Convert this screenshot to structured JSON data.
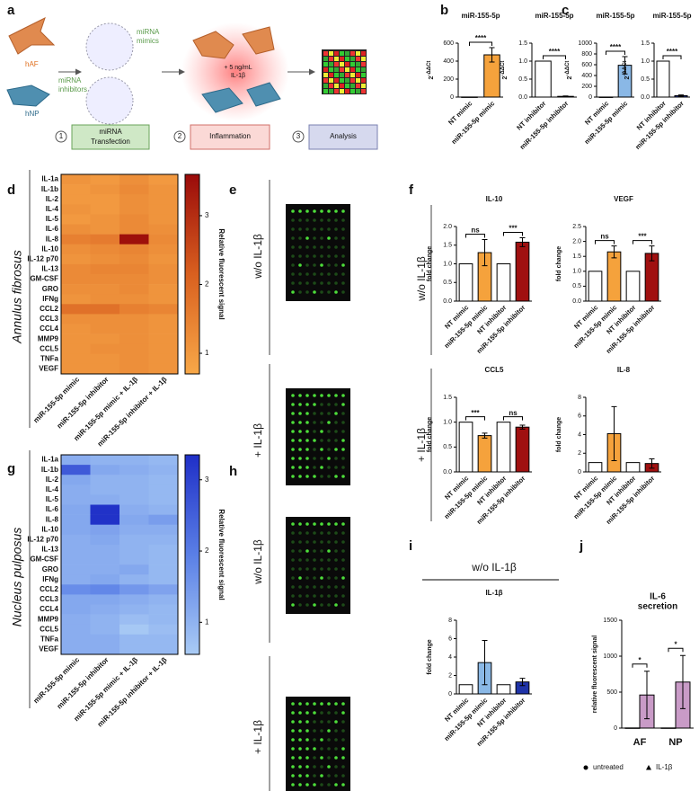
{
  "panels": [
    "a",
    "b",
    "c",
    "d",
    "e",
    "f",
    "g",
    "h",
    "i",
    "j"
  ],
  "diagram": {
    "cell_labels": [
      "hAF",
      "hNP"
    ],
    "vesicle_labels": [
      [
        "miRNA",
        "mimics"
      ],
      [
        "miRNA",
        "inhibitors"
      ]
    ],
    "stimulus": [
      "+ 5 ng/mL",
      "IL-1β"
    ],
    "steps": [
      {
        "number": "1",
        "label": [
          "miRNA",
          "Transfection"
        ]
      },
      {
        "number": "2",
        "label": [
          "Inflammation"
        ]
      },
      {
        "number": "3",
        "label": [
          "Analysis"
        ]
      }
    ]
  },
  "array_e": [
    "w/o IL-1β",
    "+ IL-1β"
  ],
  "array_h": [
    "w/o IL-1β",
    "+ IL-1β"
  ],
  "f_conditions": [
    "w/o IL-1β",
    "+ IL-1β"
  ],
  "chart_data": [
    {
      "type": "bar",
      "title": "miR-155-5p",
      "ylabel": "2",
      "ylabel_sup": "-ΔΔCt",
      "categories": [
        "NT mimic",
        "miR-155-5p mimic"
      ],
      "values": [
        1,
        470
      ],
      "errors": [
        0,
        80
      ],
      "colors": [
        "#ffffff",
        "#f5a23c"
      ],
      "ylim": [
        0,
        600
      ],
      "yticks": [
        0,
        200,
        400,
        600
      ],
      "significance": [
        "****"
      ]
    },
    {
      "type": "bar",
      "title": "miR-155-5p",
      "ylabel": "2",
      "ylabel_sup": "-ΔΔCt",
      "categories": [
        "NT inhibitor",
        "miR-155-5p inhibitor"
      ],
      "values": [
        1,
        0.02
      ],
      "errors": [
        0,
        0.01
      ],
      "colors": [
        "#ffffff",
        "#a01010"
      ],
      "ylim": [
        0,
        1.5
      ],
      "yticks": [
        {
          "value": 0,
          "label": "0.0"
        },
        0.5,
        {
          "value": 1,
          "label": "1.0"
        },
        1.5
      ],
      "significance": [
        "****"
      ]
    },
    {
      "type": "bar",
      "title": "miR-155-5p",
      "ylabel": "2",
      "ylabel_sup": "-ΔΔCt",
      "categories": [
        "NT mimic",
        "miR-155-5p mimic"
      ],
      "values": [
        1,
        590
      ],
      "errors": [
        0,
        160
      ],
      "colors": [
        "#ffffff",
        "#8ab8e6"
      ],
      "ylim": [
        0,
        1000
      ],
      "yticks": [
        0,
        200,
        400,
        600,
        800,
        1000
      ],
      "significance": [
        "****"
      ]
    },
    {
      "type": "bar",
      "title": "miR-155-5p",
      "ylabel": "2",
      "ylabel_sup": "-ΔΔCt",
      "categories": [
        "NT inhibitor",
        "miR-155-5p inhibitor"
      ],
      "values": [
        1,
        0.04
      ],
      "errors": [
        0,
        0.02
      ],
      "colors": [
        "#ffffff",
        "#1f33a8"
      ],
      "ylim": [
        0,
        1.5
      ],
      "yticks": [
        {
          "value": 0,
          "label": "0.0"
        },
        0.5,
        {
          "value": 1,
          "label": "1.0"
        },
        1.5
      ],
      "significance": [
        "****"
      ]
    },
    {
      "type": "heatmap",
      "side_label": "Annulus fibrosus",
      "colorbar_label": "Relative fluorescent signal",
      "rows": [
        "IL-1a",
        "IL-1b",
        "IL-2",
        "IL-4",
        "IL-5",
        "IL-6",
        "IL-8",
        "IL-10",
        "IL-12 p70",
        "IL-13",
        "GM-CSF",
        "GRO",
        "IFNg",
        "CCL2",
        "CCL3",
        "CCL4",
        "MMP9",
        "CCL5",
        "TNFa",
        "VEGF"
      ],
      "columns": [
        "miR-155-5p mimic",
        "miR-155-5p inhibitor",
        "miR-155-5p mimic + IL-1β",
        "miR-155-5p inhibitor + IL-1β"
      ],
      "values": [
        [
          1.1,
          1.0,
          1.2,
          1.0
        ],
        [
          1.0,
          1.1,
          1.3,
          1.1
        ],
        [
          1.0,
          1.0,
          1.2,
          1.1
        ],
        [
          1.1,
          1.0,
          1.2,
          1.1
        ],
        [
          1.0,
          1.1,
          1.3,
          1.1
        ],
        [
          1.2,
          1.1,
          1.3,
          1.2
        ],
        [
          1.5,
          1.6,
          3.5,
          1.3
        ],
        [
          1.2,
          1.3,
          1.4,
          1.2
        ],
        [
          1.1,
          1.2,
          1.3,
          1.1
        ],
        [
          1.3,
          1.4,
          1.4,
          1.2
        ],
        [
          1.3,
          1.3,
          1.3,
          1.2
        ],
        [
          1.2,
          1.2,
          1.3,
          1.1
        ],
        [
          1.1,
          1.2,
          1.2,
          1.1
        ],
        [
          1.8,
          1.8,
          1.5,
          1.4
        ],
        [
          1.2,
          1.2,
          1.2,
          1.1
        ],
        [
          1.1,
          1.2,
          1.2,
          1.1
        ],
        [
          1.1,
          1.1,
          1.2,
          1.1
        ],
        [
          1.1,
          1.2,
          1.2,
          1.1
        ],
        [
          1.1,
          1.1,
          1.2,
          1.1
        ],
        [
          1.1,
          1.1,
          1.2,
          1.1
        ]
      ],
      "colors": [
        "#f8a848",
        "#d9601f",
        "#9a0a0a"
      ],
      "zlim": [
        0.7,
        3.6
      ],
      "zticks": [
        1,
        2,
        3
      ]
    },
    {
      "type": "heatmap",
      "side_label": "Nucleus pulposus",
      "colorbar_label": "Relative fluorescent signal",
      "rows": [
        "IL-1a",
        "IL-1b",
        "IL-2",
        "IL-4",
        "IL-5",
        "IL-6",
        "IL-8",
        "IL-10",
        "IL-12 p70",
        "IL-13",
        "GM-CSF",
        "GRO",
        "IFNg",
        "CCL2",
        "CCL3",
        "CCL4",
        "MMP9",
        "CCL5",
        "TNFa",
        "VEGF"
      ],
      "columns": [
        "miR-155-5p mimic",
        "miR-155-5p inhibitor",
        "miR-155-5p mimic + IL-1β",
        "miR-155-5p inhibitor + IL-1β"
      ],
      "values": [
        [
          1.1,
          1.0,
          1.0,
          0.9
        ],
        [
          2.6,
          1.2,
          1.1,
          1.0
        ],
        [
          1.2,
          1.0,
          1.0,
          0.9
        ],
        [
          1.1,
          1.0,
          1.0,
          0.9
        ],
        [
          1.1,
          1.1,
          1.0,
          0.9
        ],
        [
          1.2,
          3.3,
          1.1,
          1.0
        ],
        [
          1.2,
          3.3,
          1.2,
          1.4
        ],
        [
          1.2,
          1.3,
          1.1,
          1.1
        ],
        [
          1.1,
          1.2,
          1.0,
          1.0
        ],
        [
          1.1,
          1.1,
          1.0,
          0.9
        ],
        [
          1.1,
          1.1,
          1.0,
          0.9
        ],
        [
          1.1,
          1.1,
          1.2,
          0.9
        ],
        [
          1.1,
          1.2,
          1.0,
          0.9
        ],
        [
          1.7,
          1.8,
          1.5,
          1.3
        ],
        [
          1.2,
          1.2,
          1.1,
          1.0
        ],
        [
          1.2,
          1.1,
          1.0,
          0.9
        ],
        [
          1.1,
          1.0,
          0.8,
          0.9
        ],
        [
          1.1,
          1.0,
          0.6,
          0.8
        ],
        [
          1.1,
          1.1,
          0.9,
          0.9
        ],
        [
          1.1,
          1.1,
          0.9,
          0.9
        ]
      ],
      "colors": [
        "#a9cbf5",
        "#5a7fe6",
        "#1f2fc7"
      ],
      "zlim": [
        0.55,
        3.35
      ],
      "zticks": [
        1,
        2,
        3
      ]
    },
    {
      "type": "bar",
      "title": "IL-10",
      "ylabel": "fold change",
      "categories": [
        "NT mimic",
        "miR-155-5p mimic",
        "NT inhibitor",
        "miR-155-5p inhibitor"
      ],
      "values": [
        1,
        1.3,
        1,
        1.58
      ],
      "errors": [
        0,
        0.35,
        0,
        0.12
      ],
      "colors": [
        "#ffffff",
        "#f5a23c",
        "#ffffff",
        "#a01010"
      ],
      "ylim": [
        0,
        2
      ],
      "yticks": [
        {
          "value": 0,
          "label": "0.0"
        },
        0.5,
        {
          "value": 1,
          "label": "1.0"
        },
        1.5,
        {
          "value": 2,
          "label": "2.0"
        }
      ],
      "significance": [
        "ns",
        "***"
      ]
    },
    {
      "type": "bar",
      "title": "VEGF",
      "ylabel": "fold change",
      "categories": [
        "NT mimic",
        "miR-155-5p mimic",
        "NT inhibitor",
        "miR-155-5p inhibitor"
      ],
      "values": [
        1,
        1.65,
        1,
        1.6
      ],
      "errors": [
        0,
        0.2,
        0,
        0.25
      ],
      "colors": [
        "#ffffff",
        "#f5a23c",
        "#ffffff",
        "#a01010"
      ],
      "ylim": [
        0,
        2.5
      ],
      "yticks": [
        {
          "value": 0,
          "label": "0.0"
        },
        0.5,
        {
          "value": 1,
          "label": "1.0"
        },
        1.5,
        {
          "value": 2,
          "label": "2.0"
        },
        2.5
      ],
      "significance": [
        "ns",
        "***"
      ]
    },
    {
      "type": "bar",
      "title": "CCL5",
      "ylabel": "fold change",
      "categories": [
        "NT mimic",
        "miR-155-5p mimic",
        "NT inhibitor",
        "miR-155-5p inhibitor"
      ],
      "values": [
        1,
        0.73,
        1,
        0.9
      ],
      "errors": [
        0,
        0.05,
        0,
        0.04
      ],
      "colors": [
        "#ffffff",
        "#f5a23c",
        "#ffffff",
        "#a01010"
      ],
      "ylim": [
        0,
        1.5
      ],
      "yticks": [
        {
          "value": 0,
          "label": "0.0"
        },
        0.5,
        {
          "value": 1,
          "label": "1.0"
        },
        1.5
      ],
      "significance": [
        "***",
        "ns"
      ]
    },
    {
      "type": "bar",
      "title": "IL-8",
      "ylabel": "fold change",
      "categories": [
        "NT mimic",
        "miR-155-5p mimic",
        "NT inhibitor",
        "miR-155-5p inhibitor"
      ],
      "values": [
        1,
        4.1,
        1,
        0.9
      ],
      "errors": [
        0,
        2.9,
        0,
        0.5
      ],
      "colors": [
        "#ffffff",
        "#f5a23c",
        "#ffffff",
        "#a01010"
      ],
      "ylim": [
        0,
        8
      ],
      "yticks": [
        0,
        2,
        4,
        6,
        8
      ]
    },
    {
      "type": "bar",
      "header": "w/o IL-1β",
      "title": "IL-1β",
      "ylabel": "fold change",
      "categories": [
        "NT mimic",
        "miR-155-5p mimic",
        "NT inhibitor",
        "miR-155-5p inhibitor"
      ],
      "values": [
        1,
        3.4,
        1,
        1.3
      ],
      "errors": [
        0,
        2.4,
        0,
        0.4
      ],
      "colors": [
        "#ffffff",
        "#8ab8e6",
        "#ffffff",
        "#1f33a8"
      ],
      "ylim": [
        0,
        8
      ],
      "yticks": [
        0,
        2,
        4,
        6,
        8
      ]
    },
    {
      "type": "grouped_bar",
      "title": [
        "IL-6",
        "secretion"
      ],
      "ylabel": "relative fluorescent signal",
      "categories": [
        "AF",
        "NP"
      ],
      "series": [
        {
          "name": "untreated",
          "color": "#ffffff",
          "marker": "circle",
          "values": [
            2,
            2
          ]
        },
        {
          "name": "IL-1β",
          "color": "#c99bc7",
          "marker": "triangle",
          "values": [
            460,
            640
          ],
          "errors": [
            330,
            370
          ]
        }
      ],
      "ylim": [
        0,
        1500
      ],
      "yticks": [
        0,
        500,
        1000,
        1500
      ],
      "significance": [
        "*",
        "*"
      ]
    }
  ]
}
